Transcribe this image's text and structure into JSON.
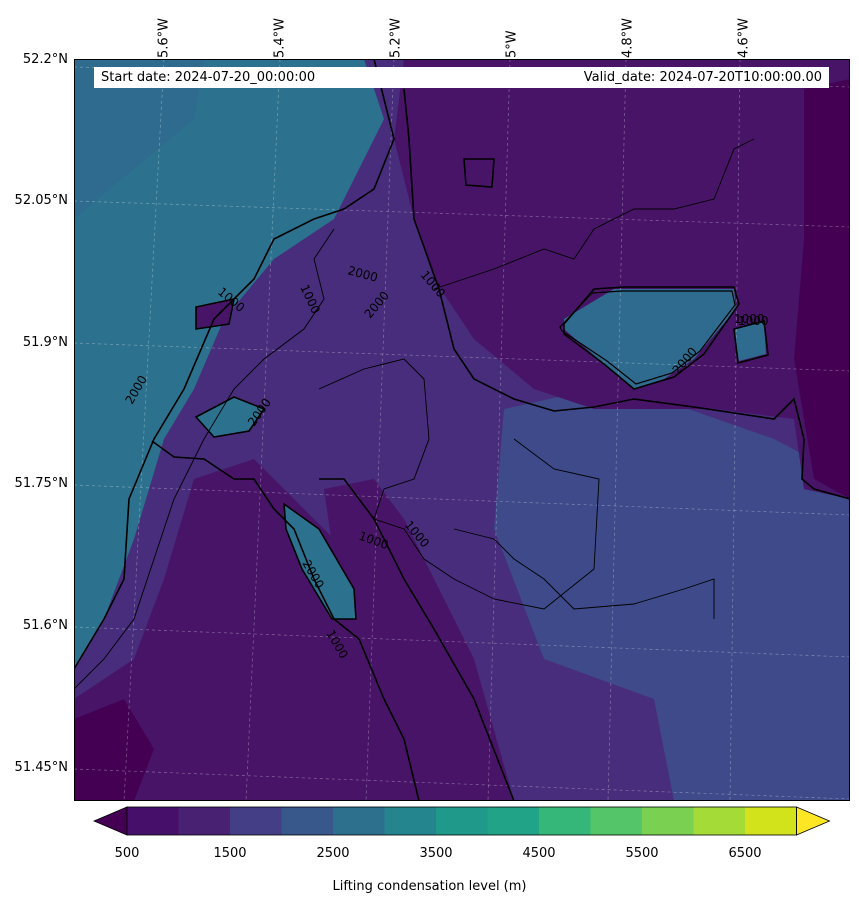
{
  "header": {
    "start_date": "Start date: 2024-07-20_00:00:00",
    "valid_date": "Valid_date: 2024-07-20T10:00:00.00"
  },
  "lon_labels": [
    "5.6°W",
    "5.4°W",
    "5.2°W",
    "5°W",
    "4.8°W",
    "4.6°W"
  ],
  "lat_labels": [
    "52.2°N",
    "52.05°N",
    "51.9°N",
    "51.75°N",
    "51.6°N",
    "51.45°N"
  ],
  "contour_labels": [
    "1000",
    "1000",
    "1000",
    "1000",
    "1000",
    "1000",
    "1000",
    "2000",
    "2000",
    "2000",
    "2000",
    "2000",
    "2000",
    "1000"
  ],
  "colorbar": {
    "ticks": [
      "500",
      "1500",
      "2500",
      "3500",
      "4500",
      "5500",
      "6500"
    ],
    "label": "Lifting condensation level (m)",
    "colors": [
      "#440154",
      "#46106a",
      "#482173",
      "#433e85",
      "#38588c",
      "#2d708e",
      "#25858e",
      "#1f9a8a",
      "#20a386",
      "#35b779",
      "#54c568",
      "#7ad151",
      "#a5db36",
      "#d2e21b",
      "#fde725"
    ]
  },
  "field_colors": {
    "c500": "#440154",
    "c1000": "#481467",
    "c1500": "#472d7b",
    "c2000": "#3e4a89",
    "c2500": "#2f6b8e",
    "c3000": "#2c728e"
  }
}
